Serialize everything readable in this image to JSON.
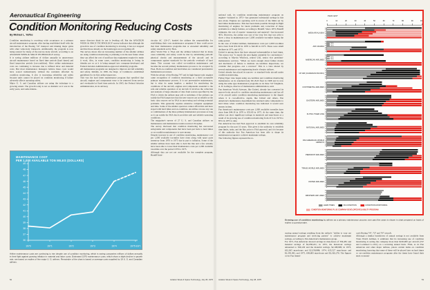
{
  "article": {
    "section": "Aeronautical Engineering",
    "title": "Condition Monitoring Reducing Costs",
    "byline": "By Michael L. Yaffee",
    "columns": {
      "col1": "Condition monitoring is receiving wide acceptance as a primary aircraft maintenance program, after having established itself with the introduction of the Boeing 747 transport and making major gains with other wide-body transports. Additionally, the program is now being resized for many of the narrow-body aircraft, according to an AVIATION WEEK & SPACE TECHNOLOGY survey.\nIt is saving airlines millions of dollars annually in unnecessary aircraft maintenance based on fixed time periods (hard times) and fixed inspection periods (on-condition). Most airline maintenance costs are continuing to increase due to inflated labor and material costs. But most maintenance managers believe these costs would have soared tremendously without the restraints afforded by condition monitoring. It also is increasing reliability and safety because units cannot be placed on condition monitoring if failure adversely affects operating safety.\nMajor U. S. and Canadian airlines are using the technique to a growing extent. The growth today is not as dramatic as it was in the early years, and some mainte-",
      "col2": "nance directors think its use is leveling off. But the AVIATION WEEK & SPACE TECHNOLOGY survey indicates that although the growth in use of condition monitoring is slowing, it has not stopped and that those already on the bandwagon are not getting off.\nThe survey shows that an increasing number of the smaller airlines are using condition monitoring or planning to in the near future when they can afford the cost of ancillary data equipment required to make it work. Also, in some cases, condition monitoring is losing its identity per se as it is being merged into company-developed and Federal Aviation Administration-approved reliability programs.\nAll maintenance programs are designed to improve aircraft reliability and safety. Initially, in 1930, the Dept. of Commerce established guidelines for its first airline inspectors.\nThis was the hard times maintenance program that specified that aircraft, engines and components were to be removed from service and overhauled at fixed time periods. In 1965, the Federal Aviation Administration, in its advisory",
      "col3": "circular AC 120-17, handed the airlines the responsibility for establishing their own maintenance programs if they could prove that their maintenance programs met or exceeded reliability and safety standards set by FAA.\nAfter World War 2, FAA and the airlines believed that in many cases reliability and safety could be met by substituting periodic physical checks and measurements of the aircraft and its components against standards for the periodic overhauls of hard times. This concept was called on-condition maintenance and became the second primary maintenance process to be accepted by FAA. Both on-condition and hard times are considered preventative maintenance processes.\nWith the advent of the Boeing 747 and its high-bypass-ratio engines came recognition of condition monitoring as a third acceptable primary maintenance process. It is not preventative maintenance, but is what its name implies: a method for monitoring the conditions of the aircraft, engines and components essential to the safe and reliable operation of an aircraft. It involves the collection and analysis of large amounts of data from sources specified by the FAA to which the airlines may add or substitute, if the airlines can satisfy the FAA inspectors that the new sources are as reliable as the basic data sources set by FAA in uncovering and solving potential problems. This generally requires extensive computer equipment and time. Some of the smaller operators cannot afford this and have stayed with hard times and on-condition. An airline can use any one or combinations of the three primary maintenance processes as long as it can satisfy the FAA that it provides safe and reliable operating conditions.\nThe magazine's survey of 27 U. S. and Canadian airlines on maintenance and maintenance trends received 19 replies.\nThe survey disclosed that condition monitoring has uncovered subsystems and components that have been put back to hard times or on-condition maintenance to save money.\nDespite increase in use of condition monitoring, maintenance cost per 1,000 available ton-miles have risen along with spare parts inventory from 1970 to 1975 due in part to inflation. Some of the smaller airlines have been able to hold the line and a few actually have been able to lower their maintenance costs per 1,000 available ton-miles over the period 1970 to 1975.\nAlthough data are not yet available for the complete program, Braniff Inter-",
      "col4": "national said, its condition monitoring maintenance program on engines—initiated in 1973—has generated substantial savings in this area alone. Engines are operating well in excess of the limits set by hard times maintenance. This has been made possible through in-flight monitoring of engines for latent problems and correction of these problems in a timely fashion, according to Braniff. Since 1973, Braniff estimates, the cost of repairs—manpower and material—has increased 40%. However, the airline was one of the very few that was able to show a drop in maintenance per 1,000 available ton-miles during the same period.\nIn the case of United Airlines, maintenance costs per 1,000 ton-miles have risen from $31.90 in 1970 to $42.00 in 1975. There were small declines in 1971 and 1972.\nUnited is among those that have returned subassemblies to hard times. The reason was \"to match the next higher assembly for convenience,\" according to Marvin Whitlock, retired UAL senior vice president-maintenance services. \"When we learn enough about failure modes and mechanics of failure to institute on-condition inspections, we consider that progress—not a reversal.\" This is a view shared by several maintenance and engineering heads of major airlines.\nUnited already has placed its narrow- or standard-body aircraft under condition monitoring.\nFlying Tiger Line began using on-condition and condition monitoring maintenance on its standard-body DC-8-63 fleet in 1968 and is now using the same type maintenance programs on its three 747 freighters, A. D. Gallegos, director of maintenance administration, said.\nPan American World Airways, like United, already has converted its narrow-body aircraft to condition monitoring maintenance and has all of its aircraft under condition monitoring maintenance to the degree where it is cost-effective. Again, like United and others, Pan American's maintenance department has returned some components to hard times when condition monitoring has indicated it would save money in time.\nPan American's maintenance costs per 1,000 available ton-miles have risen from $44.18 in 1970 to $53.00 in 1975. At the same time, the airline can show significant savings in materials and man-hours as a result of its growing use of condition monitoring from 21% in 1970 to 85% in 1975 to date.\nPan American has had FAA approval to establish its own reliability program for the past 10 years. This gives it the authority to establish time limits, tasks, and the like, prior to FAA approval, and it is because of this authority that Pan American has been able to shape its maintenance program to achieve maximum savings.\nThe following figures represent the re-",
      "col5": "curring annual savings resulting from the airline's \"ability to vary out maintenance program and servicing pattern\" to achieve maximum savings, according to Pan American's maintenance group.\nFor 1971, Pan American showed savings in man-hours of 356,481 and material savings of $2,058,221; in 1972, the man-hour savings amounted to 569,129 and the material savings, $2,108,999; in 1973, 632,365 man-hours and $2,358,888; 1974, 635,527 man-hours and $2,350,382, and 1975, 638,683 man-hours and $2,362,276. The figures cover Pan Ameri-",
      "col6": "can's Boeing 747, 727 and 707 aircraft.\nAlthough a similar breakdown of annual savings is not available from Trans World Airlines, it estimates that its increasing use of condition monitoring is saving the company more than $100,000 per aircraft (747 and Lockheed L-1011) on a recurring annual basis. TWA, as do Pan American and other major airlines, places certain items on condition monitoring, knowing that some of these will be placed later on hard times or on-condition maintenance programs after the items have found their most economi-"
    }
  },
  "footer": {
    "left_page_number": "52",
    "right_page_number": "53",
    "magazine_line": "Aviation Week & Space Technology, July 28, 1975"
  },
  "colors": {
    "accent_red": "#e3241d",
    "pink": "#f4a49f",
    "chart_blue": "#49b2d4",
    "bar_black": "#161616",
    "paper": "#f3f1ea"
  },
  "chart_data": [
    {
      "type": "line",
      "title": "MAINTENANCE COST\nPER 1,000 AVAILABLE TON MILES (DOLLARS)",
      "x": [
        "1970",
        "1971",
        "1972",
        "1973",
        "1974",
        "1975 EST."
      ],
      "values": [
        38.4,
        38.1,
        40.3,
        40.8,
        46.0,
        47.5
      ],
      "dashed_from_index": 4,
      "ylim": [
        36,
        49
      ],
      "ytick_step": 1,
      "grid": false,
      "bg_color": "#49b2d4",
      "line_color": "#ffffff",
      "caption": "Airline maintenance costs are continuing to rise despite use of condition monitoring, which is saving companies millions of dollars annually in their fight against growing inflation in material and labor costs. Estimated 1975 maintenance costs, which show a slight decline in growth rate, are based on replies of five major U. S. airlines. Remainder of the chart is based on average costs supplied by 19 U. S. and Canadian airlines."
    },
    {
      "type": "bar",
      "orientation": "horizontal-stacked",
      "axis_label": "PERCENT",
      "xlim": [
        0,
        100
      ],
      "xticks": [
        0,
        10,
        20,
        30,
        40,
        50,
        60,
        70,
        80,
        90,
        100
      ],
      "years": [
        "70",
        "71",
        "72",
        "73",
        "74",
        "75"
      ],
      "series_keys": [
        "hard_times",
        "on_condition",
        "condition_monitoring",
        "condition_monitoring_plus_reliability"
      ],
      "legend": [
        {
          "label": "HARD TIMES",
          "style": "striped"
        },
        {
          "label": "ON-CONDITION",
          "style": "black"
        },
        {
          "label": "CONDITION MONITORING",
          "style": "red"
        }
      ],
      "legend2": {
        "label": "CONDITION MONITORING PLUS COMPANY-DEVELOPED RELIABILITY PROGRAM",
        "style": "pink"
      },
      "na_label": "N.A.",
      "airlines": [
        {
          "name": "WIEN AIR ALASKA",
          "rows": [
            [
              40,
              60,
              0,
              0
            ],
            [
              6,
              44,
              12,
              38
            ],
            [
              9,
              28,
              15,
              48
            ],
            [
              9,
              24,
              15,
              52
            ],
            [
              9,
              20,
              15,
              56
            ],
            [
              0,
              0,
              100,
              0
            ]
          ]
        },
        {
          "name": "AIR CANADA",
          "rows": [
            [
              40,
              17,
              3,
              0
            ],
            "na",
            "na",
            [
              26,
              16,
              0,
              0
            ],
            [
              24,
              36,
              40,
              0
            ],
            [
              0,
              0,
              100,
              0
            ]
          ]
        },
        {
          "name": "AMERICAN AIRLINES",
          "rows": [
            [
              18,
              42,
              0,
              0
            ],
            "na",
            "na",
            [
              15,
              47,
              0,
              0
            ],
            [
              0,
              0,
              100,
              0
            ],
            [
              0,
              0,
              100,
              0
            ]
          ]
        },
        {
          "name": "CP AIR (CANADIAN PACIFIC)",
          "rows": [
            [
              62,
              33,
              0,
              0
            ],
            [
              58,
              40,
              0,
              0
            ],
            [
              52,
              46,
              0,
              0
            ],
            [
              46,
              52,
              0,
              0
            ],
            [
              42,
              53,
              5,
              0
            ],
            [
              38,
              52,
              10,
              0
            ]
          ]
        },
        {
          "name": "CONTINENTAL AIRLINES",
          "rows": [
            [
              42,
              16,
              0,
              0
            ],
            [
              34,
              24,
              0,
              0
            ],
            [
              26,
              36,
              12,
              0
            ],
            [
              16,
              40,
              34,
              0
            ],
            [
              10,
              36,
              54,
              0
            ],
            [
              6,
              34,
              60,
              0
            ]
          ]
        },
        {
          "name": "EASTERN AIRLINES",
          "rows": [
            [
              12,
              56,
              0,
              0
            ],
            [
              11,
              57,
              0,
              0
            ],
            [
              11,
              55,
              34,
              0
            ],
            [
              10,
              52,
              38,
              0
            ],
            [
              10,
              50,
              40,
              0
            ],
            [
              10,
              48,
              42,
              0
            ]
          ]
        },
        {
          "name": "FLYING TIGER LINE",
          "rows": [
            [
              30,
              20,
              0,
              0
            ],
            [
              26,
              28,
              0,
              0
            ],
            [
              22,
              36,
              0,
              0
            ],
            [
              18,
              46,
              36,
              0
            ],
            [
              14,
              52,
              34,
              0
            ],
            [
              12,
              58,
              30,
              0
            ]
          ]
        },
        {
          "name": "NATIONAL AIRLINES",
          "rows": [
            [
              12,
              30,
              0,
              0
            ],
            [
              10,
              38,
              0,
              0
            ],
            [
              9,
              44,
              47,
              0
            ],
            [
              8,
              38,
              54,
              0
            ],
            [
              8,
              32,
              60,
              0
            ],
            [
              8,
              26,
              66,
              0
            ]
          ]
        },
        {
          "name": "PAN AMERICAN WORLD AIRWAYS",
          "rows": [
            [
              12,
              67,
              21,
              0
            ],
            [
              10,
              24,
              66,
              0
            ],
            [
              9,
              22,
              69,
              0
            ],
            [
              8,
              20,
              72,
              0
            ],
            [
              8,
              18,
              74,
              0
            ],
            [
              6,
              9,
              85,
              0
            ]
          ]
        },
        {
          "name": "PIEDMONT AIRLINES",
          "rows": [
            [
              58,
              38,
              0,
              0
            ],
            [
              56,
              40,
              0,
              0
            ],
            [
              55,
              40,
              0,
              0
            ],
            [
              52,
              38,
              10,
              0
            ],
            [
              50,
              36,
              14,
              0
            ],
            [
              48,
              34,
              18,
              0
            ]
          ]
        },
        {
          "name": "TRANS WORLD AIRLINES",
          "rows": [
            [
              55,
              14,
              0,
              0
            ],
            [
              55,
              14,
              0,
              0
            ],
            [
              28,
              17,
              55,
              0
            ],
            [
              22,
              16,
              62,
              0
            ],
            [
              20,
              15,
              65,
              0
            ],
            [
              18,
              17,
              65,
              0
            ]
          ]
        },
        {
          "name": "UNITED AIRLINES",
          "rows": [
            [
              38,
              30,
              0,
              0
            ],
            [
              30,
              28,
              0,
              0
            ],
            [
              24,
              28,
              48,
              0
            ],
            [
              18,
              28,
              54,
              0
            ],
            [
              12,
              30,
              58,
              0
            ],
            [
              10,
              28,
              62,
              0
            ]
          ]
        },
        {
          "name": "WESTERN AIR LINES",
          "rows": [
            [
              60,
              0,
              0,
              0
            ],
            [
              58,
              0,
              0,
              0
            ],
            [
              57,
              0,
              0,
              0
            ],
            [
              56,
              10,
              0,
              0
            ],
            [
              55,
              15,
              30,
              0
            ],
            [
              54,
              16,
              30,
              0
            ]
          ]
        }
      ],
      "caption_bold": "Growing use of condition monitoring",
      "caption_rest": " by airlines as a primary maintenance process over past five years is shown in chart prepared on basis of replies to questionnaire."
    }
  ]
}
